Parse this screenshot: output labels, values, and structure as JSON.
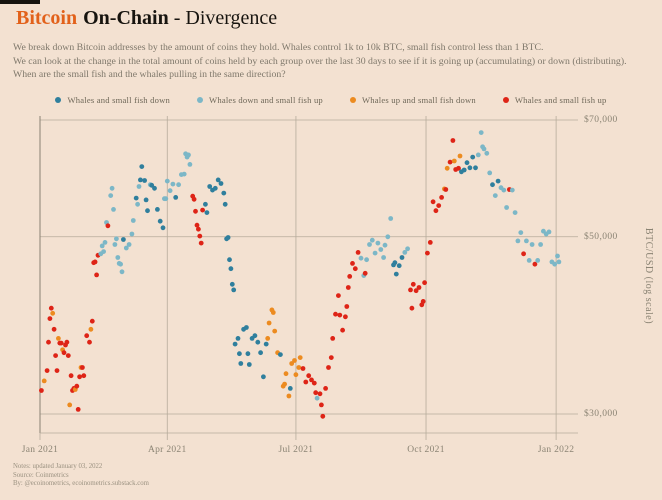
{
  "header": {
    "title_accent": "Bitcoin",
    "title_bold": "On-Chain",
    "title_rest": "- Divergence",
    "subtitle_lines": [
      "We break down Bitcoin addresses by the amount of coins they hold. Whales control 1k to 10k BTC, small fish control less than 1 BTC.",
      "We can look at the change in the total amount of coins held by each group over the last 30 days to see if it is going up (accumulating) or down (distributing).",
      "When are the small fish and the whales pulling in the same direction?"
    ]
  },
  "legend": [
    {
      "label": "Whales and small fish down",
      "color": "#2f7f9d"
    },
    {
      "label": "Whales down and small fish up",
      "color": "#7cb7c7"
    },
    {
      "label": "Whales up and small fish down",
      "color": "#ec8b20"
    },
    {
      "label": "Whales and small fish up",
      "color": "#de2417"
    }
  ],
  "footer": {
    "lines": [
      "Notes: updated January 03, 2022",
      "Source: Coinmetrics",
      "By: @ecoinometrics, ecoinometrics.substack.com"
    ]
  },
  "chart_data": {
    "type": "scatter",
    "title": "Bitcoin On-Chain - Divergence",
    "x_axis": {
      "ticks": [
        "Jan 2021",
        "Apr 2021",
        "Jul 2021",
        "Oct 2021",
        "Jan 2022"
      ],
      "tick_days": [
        0,
        90,
        181,
        273,
        365
      ],
      "domain_days": [
        0,
        380
      ],
      "epoch": "2021-01-01"
    },
    "y_axis": {
      "label": "BTC/USD (log scale)",
      "scale": "log",
      "ticks": [
        "$70,000",
        "$50,000",
        "$30,000"
      ],
      "tick_values": [
        70000,
        50000,
        30000
      ],
      "domain": [
        28500,
        80000
      ]
    },
    "grid": true,
    "legend_position": "top",
    "categories": [
      {
        "name": "whales-down-fish-down",
        "label": "Whales and small fish down",
        "color": "#2f7f9d"
      },
      {
        "name": "whales-down-fish-up",
        "label": "Whales down and small fish up",
        "color": "#7cb7c7"
      },
      {
        "name": "whales-up-fish-down",
        "label": "Whales up and small fish down",
        "color": "#ec8b20"
      },
      {
        "name": "whales-up-fish-up",
        "label": "Whales and small fish up",
        "color": "#de2417"
      }
    ],
    "point_format": [
      "day_offset",
      "price_usd",
      "category_index"
    ],
    "points": [
      [
        1,
        32100,
        3
      ],
      [
        3,
        33000,
        2
      ],
      [
        5,
        34000,
        3
      ],
      [
        6,
        36900,
        3
      ],
      [
        7,
        39500,
        3
      ],
      [
        8,
        40700,
        3
      ],
      [
        9,
        40100,
        2
      ],
      [
        10,
        38300,
        3
      ],
      [
        11,
        35500,
        3
      ],
      [
        12,
        34000,
        3
      ],
      [
        13,
        37300,
        2
      ],
      [
        14,
        36800,
        3
      ],
      [
        15,
        36800,
        3
      ],
      [
        16,
        36100,
        2
      ],
      [
        17,
        35800,
        3
      ],
      [
        18,
        36600,
        3
      ],
      [
        19,
        36900,
        3
      ],
      [
        20,
        35500,
        3
      ],
      [
        21,
        30800,
        2
      ],
      [
        22,
        33500,
        3
      ],
      [
        23,
        32100,
        3
      ],
      [
        24,
        32300,
        3
      ],
      [
        25,
        32200,
        2
      ],
      [
        26,
        32500,
        3
      ],
      [
        27,
        30400,
        3
      ],
      [
        28,
        33400,
        3
      ],
      [
        29,
        34300,
        2
      ],
      [
        30,
        34300,
        3
      ],
      [
        31,
        33500,
        3
      ],
      [
        33,
        37600,
        3
      ],
      [
        35,
        36900,
        3
      ],
      [
        36,
        38300,
        2
      ],
      [
        37,
        39200,
        3
      ],
      [
        38,
        46400,
        3
      ],
      [
        39,
        46500,
        3
      ],
      [
        40,
        44800,
        3
      ],
      [
        41,
        47400,
        3
      ],
      [
        43,
        47600,
        1
      ],
      [
        44,
        48700,
        1
      ],
      [
        45,
        47900,
        1
      ],
      [
        46,
        49200,
        1
      ],
      [
        47,
        52100,
        1
      ],
      [
        48,
        51600,
        3
      ],
      [
        50,
        56300,
        1
      ],
      [
        51,
        57500,
        1
      ],
      [
        52,
        54100,
        1
      ],
      [
        53,
        48900,
        1
      ],
      [
        54,
        49700,
        1
      ],
      [
        55,
        47100,
        1
      ],
      [
        56,
        46300,
        1
      ],
      [
        57,
        46200,
        1
      ],
      [
        58,
        45200,
        1
      ],
      [
        59,
        49600,
        0
      ],
      [
        61,
        48400,
        1
      ],
      [
        63,
        48900,
        1
      ],
      [
        65,
        50400,
        1
      ],
      [
        66,
        52400,
        1
      ],
      [
        68,
        55900,
        0
      ],
      [
        69,
        54900,
        1
      ],
      [
        70,
        57800,
        1
      ],
      [
        71,
        58900,
        0
      ],
      [
        72,
        61200,
        0
      ],
      [
        74,
        58800,
        0
      ],
      [
        75,
        55600,
        0
      ],
      [
        76,
        53900,
        0
      ],
      [
        78,
        58100,
        1
      ],
      [
        79,
        58000,
        0
      ],
      [
        81,
        57500,
        0
      ],
      [
        83,
        54100,
        0
      ],
      [
        85,
        52300,
        0
      ],
      [
        87,
        51300,
        0
      ],
      [
        88,
        55800,
        1
      ],
      [
        89,
        55800,
        1
      ],
      [
        90,
        58700,
        1
      ],
      [
        92,
        57100,
        1
      ],
      [
        94,
        58200,
        1
      ],
      [
        96,
        56000,
        0
      ],
      [
        98,
        58100,
        1
      ],
      [
        100,
        59800,
        1
      ],
      [
        102,
        59900,
        1
      ],
      [
        103,
        63500,
        1
      ],
      [
        104,
        62900,
        1
      ],
      [
        105,
        63300,
        1
      ],
      [
        106,
        61600,
        1
      ],
      [
        108,
        56200,
        3
      ],
      [
        109,
        55700,
        3
      ],
      [
        110,
        53800,
        3
      ],
      [
        111,
        51700,
        3
      ],
      [
        112,
        51100,
        3
      ],
      [
        113,
        50100,
        3
      ],
      [
        114,
        49100,
        3
      ],
      [
        115,
        54000,
        3
      ],
      [
        117,
        54900,
        0
      ],
      [
        118,
        53600,
        0
      ],
      [
        120,
        57800,
        0
      ],
      [
        122,
        57200,
        0
      ],
      [
        124,
        57500,
        0
      ],
      [
        126,
        58900,
        0
      ],
      [
        128,
        58300,
        0
      ],
      [
        130,
        56700,
        0
      ],
      [
        131,
        54900,
        0
      ],
      [
        132,
        49700,
        0
      ],
      [
        133,
        49900,
        0
      ],
      [
        134,
        46800,
        0
      ],
      [
        135,
        45600,
        0
      ],
      [
        136,
        43600,
        0
      ],
      [
        137,
        42900,
        0
      ],
      [
        138,
        36700,
        0
      ],
      [
        140,
        37300,
        0
      ],
      [
        141,
        35700,
        0
      ],
      [
        142,
        34700,
        0
      ],
      [
        144,
        38300,
        0
      ],
      [
        146,
        38500,
        0
      ],
      [
        147,
        35700,
        0
      ],
      [
        148,
        34600,
        0
      ],
      [
        150,
        37300,
        0
      ],
      [
        152,
        37600,
        0
      ],
      [
        154,
        36900,
        0
      ],
      [
        156,
        35800,
        0
      ],
      [
        158,
        33400,
        0
      ],
      [
        160,
        36700,
        0
      ],
      [
        161,
        37300,
        2
      ],
      [
        162,
        39000,
        2
      ],
      [
        164,
        40500,
        2
      ],
      [
        165,
        40200,
        2
      ],
      [
        166,
        38100,
        2
      ],
      [
        168,
        35800,
        2
      ],
      [
        170,
        35600,
        0
      ],
      [
        172,
        32500,
        2
      ],
      [
        173,
        32700,
        2
      ],
      [
        174,
        33700,
        2
      ],
      [
        176,
        31600,
        2
      ],
      [
        177,
        32300,
        0
      ],
      [
        178,
        34700,
        2
      ],
      [
        180,
        35000,
        2
      ],
      [
        181,
        33600,
        2
      ],
      [
        183,
        34300,
        2
      ],
      [
        184,
        35300,
        2
      ],
      [
        186,
        34200,
        3
      ],
      [
        188,
        32900,
        3
      ],
      [
        190,
        33500,
        3
      ],
      [
        192,
        33100,
        3
      ],
      [
        194,
        32800,
        3
      ],
      [
        195,
        31900,
        3
      ],
      [
        196,
        31400,
        1
      ],
      [
        198,
        31800,
        3
      ],
      [
        199,
        30800,
        3
      ],
      [
        200,
        29800,
        3
      ],
      [
        202,
        32300,
        3
      ],
      [
        204,
        34300,
        3
      ],
      [
        206,
        35300,
        3
      ],
      [
        207,
        37300,
        3
      ],
      [
        209,
        40000,
        3
      ],
      [
        211,
        42200,
        3
      ],
      [
        212,
        39900,
        3
      ],
      [
        214,
        38200,
        3
      ],
      [
        216,
        39700,
        3
      ],
      [
        217,
        40900,
        3
      ],
      [
        218,
        43200,
        3
      ],
      [
        219,
        44600,
        3
      ],
      [
        221,
        46300,
        3
      ],
      [
        223,
        45600,
        3
      ],
      [
        225,
        47800,
        3
      ],
      [
        227,
        47000,
        1
      ],
      [
        229,
        44700,
        1
      ],
      [
        230,
        45000,
        3
      ],
      [
        231,
        46800,
        1
      ],
      [
        233,
        48900,
        1
      ],
      [
        235,
        49500,
        1
      ],
      [
        237,
        47700,
        1
      ],
      [
        239,
        49100,
        1
      ],
      [
        241,
        48200,
        1
      ],
      [
        243,
        47100,
        1
      ],
      [
        244,
        48800,
        1
      ],
      [
        246,
        50000,
        1
      ],
      [
        248,
        52700,
        1
      ],
      [
        250,
        46100,
        0
      ],
      [
        251,
        46400,
        0
      ],
      [
        252,
        44900,
        0
      ],
      [
        254,
        46000,
        0
      ],
      [
        256,
        47100,
        0
      ],
      [
        258,
        47800,
        1
      ],
      [
        260,
        48300,
        1
      ],
      [
        262,
        42900,
        3
      ],
      [
        263,
        40700,
        3
      ],
      [
        264,
        43600,
        3
      ],
      [
        266,
        42800,
        3
      ],
      [
        268,
        43200,
        3
      ],
      [
        270,
        41100,
        3
      ],
      [
        271,
        41500,
        3
      ],
      [
        272,
        43800,
        3
      ],
      [
        274,
        47700,
        3
      ],
      [
        276,
        49200,
        3
      ],
      [
        278,
        55300,
        3
      ],
      [
        280,
        53900,
        3
      ],
      [
        282,
        54700,
        3
      ],
      [
        284,
        56000,
        3
      ],
      [
        286,
        57400,
        2
      ],
      [
        287,
        57300,
        3
      ],
      [
        288,
        60900,
        2
      ],
      [
        290,
        62000,
        3
      ],
      [
        292,
        65990,
        3
      ],
      [
        293,
        62200,
        2
      ],
      [
        294,
        60700,
        3
      ],
      [
        296,
        60900,
        3
      ],
      [
        297,
        63100,
        2
      ],
      [
        298,
        60300,
        0
      ],
      [
        300,
        60600,
        0
      ],
      [
        302,
        61900,
        0
      ],
      [
        304,
        61000,
        0
      ],
      [
        306,
        62900,
        0
      ],
      [
        308,
        61000,
        0
      ],
      [
        310,
        63300,
        1
      ],
      [
        312,
        67500,
        1
      ],
      [
        313,
        64800,
        1
      ],
      [
        314,
        64400,
        1
      ],
      [
        316,
        63600,
        1
      ],
      [
        318,
        60100,
        1
      ],
      [
        320,
        58100,
        0
      ],
      [
        322,
        56300,
        1
      ],
      [
        324,
        58700,
        0
      ],
      [
        326,
        57600,
        1
      ],
      [
        328,
        57200,
        1
      ],
      [
        330,
        54400,
        1
      ],
      [
        332,
        57300,
        3
      ],
      [
        334,
        57200,
        1
      ],
      [
        336,
        53600,
        1
      ],
      [
        338,
        49400,
        1
      ],
      [
        340,
        50600,
        1
      ],
      [
        342,
        47600,
        3
      ],
      [
        344,
        49400,
        1
      ],
      [
        346,
        46700,
        1
      ],
      [
        348,
        48900,
        1
      ],
      [
        350,
        46200,
        3
      ],
      [
        352,
        46700,
        1
      ],
      [
        354,
        48900,
        1
      ],
      [
        356,
        50800,
        1
      ],
      [
        358,
        50400,
        1
      ],
      [
        360,
        50700,
        1
      ],
      [
        362,
        46500,
        1
      ],
      [
        364,
        46200,
        1
      ],
      [
        366,
        47300,
        1
      ],
      [
        367,
        46500,
        1
      ]
    ]
  }
}
